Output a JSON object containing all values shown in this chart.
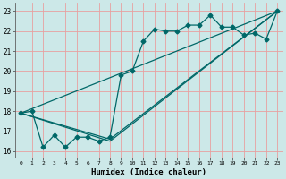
{
  "xlabel": "Humidex (Indice chaleur)",
  "bg_color": "#cce8e8",
  "grid_color": "#e8a0a0",
  "line_color": "#006868",
  "xlim": [
    -0.5,
    23.5
  ],
  "ylim": [
    15.7,
    23.4
  ],
  "xticks": [
    0,
    1,
    2,
    3,
    4,
    5,
    6,
    7,
    8,
    9,
    10,
    11,
    12,
    13,
    14,
    15,
    16,
    17,
    18,
    19,
    20,
    21,
    22,
    23
  ],
  "yticks": [
    16,
    17,
    18,
    19,
    20,
    21,
    22,
    23
  ],
  "line1_x": [
    0,
    1,
    2,
    3,
    4,
    5,
    6,
    7,
    8,
    9,
    10,
    11,
    12,
    13,
    14,
    15,
    16,
    17,
    18,
    19,
    20,
    21,
    22,
    23
  ],
  "line1_y": [
    17.9,
    18.0,
    16.2,
    16.8,
    16.2,
    16.7,
    16.7,
    16.5,
    16.7,
    19.8,
    20.0,
    21.5,
    22.1,
    22.0,
    22.0,
    22.3,
    22.3,
    22.8,
    22.2,
    22.2,
    21.8,
    21.9,
    21.6,
    23.0
  ],
  "line2_x": [
    0,
    23
  ],
  "line2_y": [
    17.9,
    23.0
  ],
  "line3_x": [
    0,
    8,
    23
  ],
  "line3_y": [
    17.9,
    16.6,
    23.0
  ],
  "line4_x": [
    0,
    8,
    23
  ],
  "line4_y": [
    17.9,
    16.5,
    23.0
  ],
  "marker_size": 2.5,
  "line_width": 0.9
}
